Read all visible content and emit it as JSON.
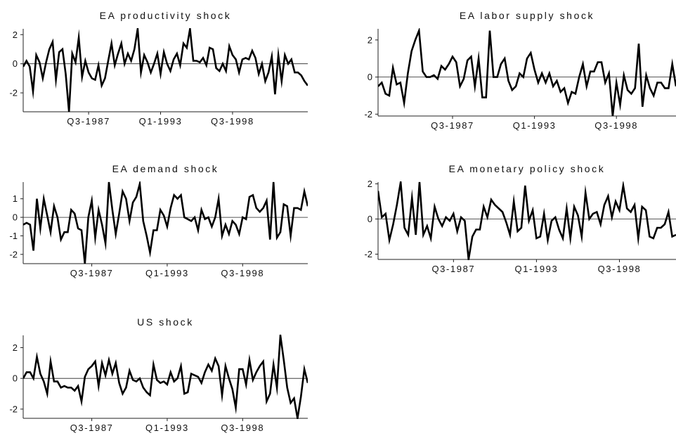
{
  "chart_data": [
    {
      "type": "line",
      "title": "EA productivity shock",
      "xlabel": "",
      "ylabel": "",
      "ylim": [
        -3.3,
        2.4
      ],
      "yticks": [
        -2,
        0,
        2
      ],
      "xtick_labels": [
        "Q3-1987",
        "Q1-1993",
        "Q3-1998"
      ],
      "xtick_index": [
        20,
        42,
        64
      ],
      "zero_line": true,
      "series": [
        {
          "values": [
            -0.2,
            0.2,
            -0.2,
            -1.9,
            0.6,
            0.1,
            -1.0,
            0.1,
            1.0,
            1.5,
            -1.1,
            0.8,
            1.0,
            -0.7,
            -3.3,
            0.7,
            0.1,
            1.8,
            -0.9,
            0.2,
            -0.6,
            -1.0,
            -1.1,
            -0.1,
            -1.5,
            -1.0,
            0.2,
            1.4,
            -0.1,
            0.7,
            1.4,
            0.0,
            0.7,
            0.2,
            1.0,
            2.4,
            -0.6,
            0.6,
            0.1,
            -0.6,
            0.0,
            0.7,
            -0.7,
            0.8,
            0.0,
            -0.5,
            0.3,
            0.7,
            -0.1,
            1.4,
            1.1,
            2.4,
            0.2,
            0.2,
            0.1,
            0.4,
            -0.1,
            1.1,
            1.0,
            -0.3,
            -0.5,
            0.0,
            -0.5,
            1.2,
            0.6,
            0.3,
            -0.6,
            0.3,
            0.4,
            0.3,
            0.9,
            0.4,
            -0.7,
            0.0,
            -1.2,
            -0.6,
            0.5,
            -2.1,
            0.6,
            -1.2,
            0.6,
            0.0,
            0.3,
            -0.6,
            -0.6,
            -0.8,
            -1.2,
            -1.5
          ]
        }
      ]
    },
    {
      "type": "line",
      "title": "EA labor supply shock",
      "xlabel": "",
      "ylabel": "",
      "ylim": [
        -2.1,
        2.6
      ],
      "yticks": [
        -2,
        0,
        2
      ],
      "xtick_labels": [
        "Q3-1987",
        "Q1-1993",
        "Q3-1998"
      ],
      "xtick_index": [
        20,
        42,
        64
      ],
      "zero_line": true,
      "series": [
        {
          "values": [
            -0.5,
            -0.3,
            -0.9,
            -1.0,
            0.5,
            -0.4,
            -0.3,
            -1.4,
            0.2,
            1.4,
            2.0,
            2.5,
            0.3,
            0.0,
            0.0,
            0.1,
            -0.1,
            0.6,
            0.4,
            0.7,
            1.1,
            0.8,
            -0.5,
            -0.1,
            0.9,
            1.1,
            -0.5,
            1.0,
            -1.1,
            -1.1,
            2.5,
            0.0,
            0.0,
            0.7,
            1.0,
            -0.2,
            -0.7,
            -0.5,
            0.2,
            0.0,
            1.0,
            1.3,
            0.4,
            -0.3,
            0.2,
            -0.3,
            0.2,
            -0.5,
            -0.2,
            -0.8,
            -0.6,
            -1.4,
            -0.8,
            -0.9,
            0.0,
            0.7,
            -0.5,
            0.3,
            0.3,
            0.8,
            0.8,
            -0.3,
            0.2,
            -2.1,
            -0.3,
            -1.5,
            0.1,
            -0.7,
            -0.9,
            -0.6,
            1.8,
            -1.6,
            0.1,
            -0.6,
            -1.0,
            -0.3,
            -0.3,
            -0.6,
            -0.6,
            0.7,
            -0.5
          ]
        }
      ]
    },
    {
      "type": "line",
      "title": "EA demand shock",
      "xlabel": "",
      "ylabel": "",
      "ylim": [
        -2.5,
        1.9
      ],
      "yticks": [
        -2,
        -1,
        0,
        1
      ],
      "xtick_labels": [
        "Q3-1987",
        "Q1-1993",
        "Q3-1998"
      ],
      "xtick_index": [
        20,
        42,
        64
      ],
      "zero_line": true,
      "series": [
        {
          "values": [
            -0.4,
            -0.3,
            -0.4,
            -1.8,
            1.0,
            -0.6,
            1.0,
            0.1,
            -0.8,
            0.6,
            0.0,
            -1.2,
            -0.8,
            -0.8,
            0.4,
            0.2,
            -0.6,
            -0.7,
            -2.5,
            0.0,
            0.9,
            -1.1,
            0.4,
            -0.4,
            -1.4,
            1.9,
            0.4,
            -0.9,
            0.2,
            1.4,
            1.0,
            -0.2,
            0.8,
            1.1,
            1.8,
            -0.2,
            -1.0,
            -1.9,
            -0.7,
            -0.7,
            0.4,
            0.1,
            -0.5,
            0.5,
            1.2,
            1.0,
            1.2,
            0.0,
            -0.1,
            -0.2,
            0.0,
            -0.7,
            0.4,
            -0.1,
            0.0,
            -0.5,
            0.0,
            1.0,
            -1.0,
            -0.4,
            -0.9,
            -0.2,
            -0.4,
            -0.9,
            0.0,
            -0.1,
            1.1,
            1.2,
            0.5,
            0.3,
            0.5,
            0.9,
            -1.2,
            1.9,
            -1.1,
            -0.8,
            0.7,
            0.6,
            -1.0,
            0.5,
            0.5,
            0.4,
            1.4,
            0.6
          ]
        }
      ]
    },
    {
      "type": "line",
      "title": "EA monetary policy shock",
      "xlabel": "",
      "ylabel": "",
      "ylim": [
        -2.3,
        2.1
      ],
      "yticks": [
        -2,
        0,
        2
      ],
      "xtick_labels": [
        "Q3-1987",
        "Q1-1993",
        "Q3-1998"
      ],
      "xtick_index": [
        20,
        42,
        64
      ],
      "zero_line": true,
      "series": [
        {
          "values": [
            1.6,
            0.1,
            0.3,
            -1.2,
            -0.3,
            0.8,
            2.1,
            -0.5,
            -0.9,
            1.2,
            -0.9,
            2.1,
            -0.9,
            -0.4,
            -1.1,
            0.7,
            0.0,
            -0.4,
            0.1,
            -0.1,
            0.3,
            -0.7,
            0.1,
            -0.1,
            -2.3,
            -1.0,
            -0.6,
            -0.6,
            0.7,
            0.1,
            1.1,
            0.8,
            0.6,
            0.4,
            -0.2,
            -0.9,
            1.0,
            -0.7,
            -0.5,
            1.9,
            -0.1,
            0.5,
            -1.1,
            -1.0,
            0.3,
            -1.2,
            -0.1,
            0.1,
            -0.6,
            -1.1,
            0.6,
            -1.1,
            0.7,
            0.2,
            -1.0,
            1.5,
            0.0,
            0.3,
            0.4,
            -0.3,
            0.8,
            1.3,
            0.1,
            1.0,
            0.5,
            1.9,
            0.6,
            0.4,
            0.8,
            -1.1,
            0.7,
            0.5,
            -1.0,
            -1.1,
            -0.5,
            -0.5,
            -0.3,
            0.4,
            -1.0,
            -0.9
          ]
        }
      ]
    },
    {
      "type": "line",
      "title": "US shock",
      "xlabel": "",
      "ylabel": "",
      "ylim": [
        -2.6,
        2.8
      ],
      "yticks": [
        -2,
        0,
        2
      ],
      "xtick_labels": [
        "Q3-1987",
        "Q1-1993",
        "Q3-1998"
      ],
      "xtick_index": [
        20,
        42,
        64
      ],
      "zero_line": true,
      "series": [
        {
          "values": [
            0.0,
            0.4,
            0.4,
            0.0,
            1.4,
            0.3,
            -0.2,
            -1.0,
            1.1,
            -0.2,
            -0.2,
            -0.6,
            -0.5,
            -0.6,
            -0.6,
            -0.8,
            -0.5,
            -1.5,
            0.1,
            0.6,
            0.8,
            1.1,
            -0.5,
            1.0,
            0.2,
            1.2,
            0.3,
            1.0,
            -0.3,
            -1.0,
            -0.6,
            0.5,
            -0.1,
            -0.2,
            0.0,
            -0.6,
            -0.9,
            -1.1,
            0.9,
            -0.1,
            -0.3,
            -0.2,
            -0.4,
            0.4,
            -0.2,
            0.0,
            0.8,
            -1.0,
            -0.9,
            0.3,
            0.2,
            0.1,
            -0.3,
            0.4,
            0.9,
            0.5,
            1.3,
            0.8,
            -1.1,
            0.8,
            0.0,
            -0.7,
            -1.9,
            0.6,
            0.6,
            -0.4,
            1.2,
            -0.1,
            0.4,
            0.8,
            1.1,
            -1.5,
            -1.0,
            0.9,
            -0.6,
            2.8,
            1.2,
            -0.6,
            -1.6,
            -1.3,
            -2.6,
            -1.2,
            0.6,
            -0.3
          ]
        }
      ]
    }
  ]
}
